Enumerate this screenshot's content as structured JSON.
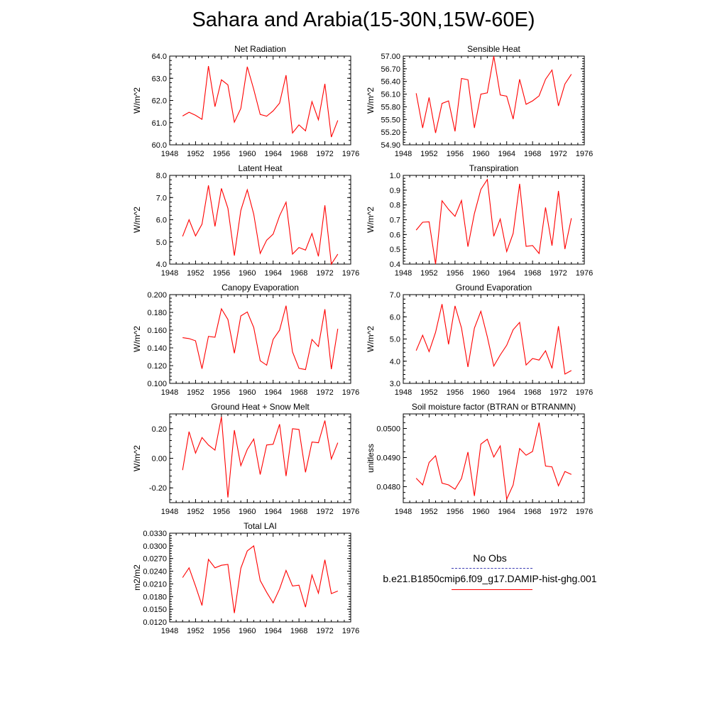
{
  "title": "Sahara and Arabia(15-30N,15W-60E)",
  "colors": {
    "model": "#ff0000",
    "obs": "#3c3cb4"
  },
  "legend": {
    "obs_label": "No Obs",
    "model_label": "b.e21.B1850cmip6.f09_g17.DAMIP-hist-ghg.001"
  },
  "chart_data": [
    {
      "type": "line",
      "title": "Net Radiation",
      "ylabel": "W/m^2",
      "xlim": [
        1948,
        1976
      ],
      "ylim": [
        60.0,
        64.0
      ],
      "xticks": [
        "1948",
        "1952",
        "1956",
        "1960",
        "1964",
        "1968",
        "1972",
        "1976"
      ],
      "yticks": [
        "60.0",
        "61.0",
        "62.0",
        "63.0",
        "64.0"
      ],
      "series": [
        {
          "x": [
            1950,
            1951,
            1952,
            1953,
            1954,
            1955,
            1956,
            1957,
            1958,
            1959,
            1960,
            1961,
            1962,
            1963,
            1964,
            1965,
            1966,
            1967,
            1968,
            1969,
            1970,
            1971,
            1972,
            1973,
            1974
          ],
          "y": [
            61.3,
            61.47,
            61.33,
            61.15,
            63.55,
            61.72,
            62.93,
            62.7,
            61.02,
            61.64,
            63.52,
            62.5,
            61.37,
            61.29,
            61.53,
            61.88,
            63.14,
            60.53,
            60.9,
            60.63,
            61.95,
            61.13,
            62.75,
            60.35,
            61.1
          ]
        }
      ]
    },
    {
      "type": "line",
      "title": "Sensible Heat",
      "ylabel": "W/m^2",
      "xlim": [
        1948,
        1976
      ],
      "ylim": [
        54.9,
        57.0
      ],
      "xticks": [
        "1948",
        "1952",
        "1956",
        "1960",
        "1964",
        "1968",
        "1972",
        "1976"
      ],
      "yticks": [
        "54.90",
        "55.20",
        "55.50",
        "55.80",
        "56.10",
        "56.40",
        "56.70",
        "57.00"
      ],
      "series": [
        {
          "x": [
            1950,
            1951,
            1952,
            1953,
            1954,
            1955,
            1956,
            1957,
            1958,
            1959,
            1960,
            1961,
            1962,
            1963,
            1964,
            1965,
            1966,
            1967,
            1968,
            1969,
            1970,
            1971,
            1972,
            1973,
            1974
          ],
          "y": [
            56.12,
            55.3,
            56.02,
            55.18,
            55.88,
            55.94,
            55.22,
            56.47,
            56.44,
            55.3,
            56.1,
            56.13,
            57.0,
            56.08,
            56.05,
            55.51,
            56.45,
            55.86,
            55.94,
            56.06,
            56.45,
            56.67,
            55.82,
            56.34,
            56.57
          ]
        }
      ]
    },
    {
      "type": "line",
      "title": "Latent Heat",
      "ylabel": "W/m^2",
      "xlim": [
        1948,
        1976
      ],
      "ylim": [
        4.0,
        8.0
      ],
      "xticks": [
        "1948",
        "1952",
        "1956",
        "1960",
        "1964",
        "1968",
        "1972",
        "1976"
      ],
      "yticks": [
        "4.0",
        "5.0",
        "6.0",
        "7.0",
        "8.0"
      ],
      "series": [
        {
          "x": [
            1950,
            1951,
            1952,
            1953,
            1954,
            1955,
            1956,
            1957,
            1958,
            1959,
            1960,
            1961,
            1962,
            1963,
            1964,
            1965,
            1966,
            1967,
            1968,
            1969,
            1970,
            1971,
            1972,
            1973,
            1974
          ],
          "y": [
            5.25,
            6.0,
            5.27,
            5.8,
            7.55,
            5.7,
            7.41,
            6.52,
            4.38,
            6.42,
            7.35,
            6.25,
            4.48,
            5.08,
            5.35,
            6.18,
            6.79,
            4.45,
            4.75,
            4.63,
            5.38,
            4.35,
            6.65,
            4.0,
            4.45
          ]
        }
      ]
    },
    {
      "type": "line",
      "title": "Transpiration",
      "ylabel": "W/m^2",
      "xlim": [
        1948,
        1976
      ],
      "ylim": [
        0.4,
        1.0
      ],
      "xticks": [
        "1948",
        "1952",
        "1956",
        "1960",
        "1964",
        "1968",
        "1972",
        "1976"
      ],
      "yticks": [
        "0.4",
        "0.5",
        "0.6",
        "0.7",
        "0.8",
        "0.9",
        "1.0"
      ],
      "series": [
        {
          "x": [
            1950,
            1951,
            1952,
            1953,
            1954,
            1955,
            1956,
            1957,
            1958,
            1959,
            1960,
            1961,
            1962,
            1963,
            1964,
            1965,
            1966,
            1967,
            1968,
            1969,
            1970,
            1971,
            1972,
            1973,
            1974
          ],
          "y": [
            0.63,
            0.683,
            0.686,
            0.4,
            0.828,
            0.77,
            0.723,
            0.83,
            0.518,
            0.742,
            0.905,
            0.972,
            0.588,
            0.705,
            0.485,
            0.608,
            0.943,
            0.52,
            0.526,
            0.472,
            0.783,
            0.525,
            0.895,
            0.502,
            0.71
          ]
        }
      ]
    },
    {
      "type": "line",
      "title": "Canopy Evaporation",
      "ylabel": "W/m^2",
      "xlim": [
        1948,
        1976
      ],
      "ylim": [
        0.1,
        0.2
      ],
      "xticks": [
        "1948",
        "1952",
        "1956",
        "1960",
        "1964",
        "1968",
        "1972",
        "1976"
      ],
      "yticks": [
        "0.100",
        "0.120",
        "0.140",
        "0.160",
        "0.180",
        "0.200"
      ],
      "series": [
        {
          "x": [
            1950,
            1951,
            1952,
            1953,
            1954,
            1955,
            1956,
            1957,
            1958,
            1959,
            1960,
            1961,
            1962,
            1963,
            1964,
            1965,
            1966,
            1967,
            1968,
            1969,
            1970,
            1971,
            1972,
            1973,
            1974
          ],
          "y": [
            0.1515,
            0.1505,
            0.148,
            0.1165,
            0.153,
            0.152,
            0.184,
            0.172,
            0.134,
            0.176,
            0.1805,
            0.163,
            0.1255,
            0.1205,
            0.1495,
            0.16,
            0.1875,
            0.1355,
            0.117,
            0.1155,
            0.1495,
            0.1415,
            0.1835,
            0.116,
            0.1615
          ]
        }
      ]
    },
    {
      "type": "line",
      "title": "Ground Evaporation",
      "ylabel": "W/m^2",
      "xlim": [
        1948,
        1976
      ],
      "ylim": [
        3.0,
        7.0
      ],
      "xticks": [
        "1948",
        "1952",
        "1956",
        "1960",
        "1964",
        "1968",
        "1972",
        "1976"
      ],
      "yticks": [
        "3.0",
        "4.0",
        "5.0",
        "6.0",
        "7.0"
      ],
      "series": [
        {
          "x": [
            1950,
            1951,
            1952,
            1953,
            1954,
            1955,
            1956,
            1957,
            1958,
            1959,
            1960,
            1961,
            1962,
            1963,
            1964,
            1965,
            1966,
            1967,
            1968,
            1969,
            1970,
            1971,
            1972,
            1973,
            1974
          ],
          "y": [
            4.48,
            5.17,
            4.43,
            5.3,
            6.57,
            4.76,
            6.49,
            5.5,
            3.74,
            5.49,
            6.25,
            5.1,
            3.78,
            4.28,
            4.72,
            5.42,
            5.75,
            3.83,
            4.12,
            4.05,
            4.47,
            3.68,
            5.58,
            3.42,
            3.58
          ]
        }
      ]
    },
    {
      "type": "line",
      "title": "Ground Heat + Snow Melt",
      "ylabel": "W/m^2",
      "xlim": [
        1948,
        1976
      ],
      "ylim": [
        -0.3,
        0.3
      ],
      "xticks": [
        "1948",
        "1952",
        "1956",
        "1960",
        "1964",
        "1968",
        "1972",
        "1976"
      ],
      "yticks": [
        "-0.20",
        "0.00",
        "0.20"
      ],
      "ytickvals": [
        -0.2,
        0.0,
        0.2
      ],
      "series": [
        {
          "x": [
            1950,
            1951,
            1952,
            1953,
            1954,
            1955,
            1956,
            1957,
            1958,
            1959,
            1960,
            1961,
            1962,
            1963,
            1964,
            1965,
            1966,
            1967,
            1968,
            1969,
            1970,
            1971,
            1972,
            1973,
            1974
          ],
          "y": [
            -0.08,
            0.18,
            0.035,
            0.14,
            0.09,
            0.055,
            0.28,
            -0.265,
            0.19,
            -0.05,
            0.06,
            0.13,
            -0.11,
            0.09,
            0.095,
            0.23,
            -0.12,
            0.2,
            0.195,
            -0.095,
            0.11,
            0.105,
            0.255,
            -0.005,
            0.105
          ]
        }
      ]
    },
    {
      "type": "line",
      "title": "Soil moisture factor (BTRAN or BTRANMN)",
      "ylabel": "unitless",
      "xlim": [
        1948,
        1976
      ],
      "ylim": [
        0.04745,
        0.0505
      ],
      "xticks": [
        "1948",
        "1952",
        "1956",
        "1960",
        "1964",
        "1968",
        "1972",
        "1976"
      ],
      "yticks": [
        "0.0480",
        "0.0490",
        "0.0500"
      ],
      "ytickvals": [
        0.048,
        0.049,
        0.05
      ],
      "series": [
        {
          "x": [
            1950,
            1951,
            1952,
            1953,
            1954,
            1955,
            1956,
            1957,
            1958,
            1959,
            1960,
            1961,
            1962,
            1963,
            1964,
            1965,
            1966,
            1967,
            1968,
            1969,
            1970,
            1971,
            1972,
            1973,
            1974
          ],
          "y": [
            0.04829,
            0.04806,
            0.04883,
            0.04906,
            0.04812,
            0.04806,
            0.04791,
            0.04828,
            0.04919,
            0.04768,
            0.04946,
            0.04963,
            0.04902,
            0.0494,
            0.04757,
            0.04806,
            0.04931,
            0.04908,
            0.04921,
            0.0502,
            0.04871,
            0.04868,
            0.04803,
            0.04852,
            0.04842
          ]
        }
      ]
    },
    {
      "type": "line",
      "title": "Total LAI",
      "ylabel": "m2/m2",
      "xlim": [
        1948,
        1976
      ],
      "ylim": [
        0.012,
        0.033
      ],
      "xticks": [
        "1948",
        "1952",
        "1956",
        "1960",
        "1964",
        "1968",
        "1972",
        "1976"
      ],
      "yticks": [
        "0.0120",
        "0.0150",
        "0.0180",
        "0.0210",
        "0.0240",
        "0.0270",
        "0.0300",
        "0.0330"
      ],
      "series": [
        {
          "x": [
            1950,
            1951,
            1952,
            1953,
            1954,
            1955,
            1956,
            1957,
            1958,
            1959,
            1960,
            1961,
            1962,
            1963,
            1964,
            1965,
            1966,
            1967,
            1968,
            1969,
            1970,
            1971,
            1972,
            1973,
            1974
          ],
          "y": [
            0.0225,
            0.0248,
            0.0205,
            0.0159,
            0.0268,
            0.0248,
            0.0254,
            0.0256,
            0.0141,
            0.0247,
            0.0288,
            0.03,
            0.0218,
            0.019,
            0.0165,
            0.0198,
            0.0242,
            0.0205,
            0.0207,
            0.0155,
            0.0231,
            0.0188,
            0.0267,
            0.0187,
            0.0193
          ]
        }
      ]
    }
  ]
}
